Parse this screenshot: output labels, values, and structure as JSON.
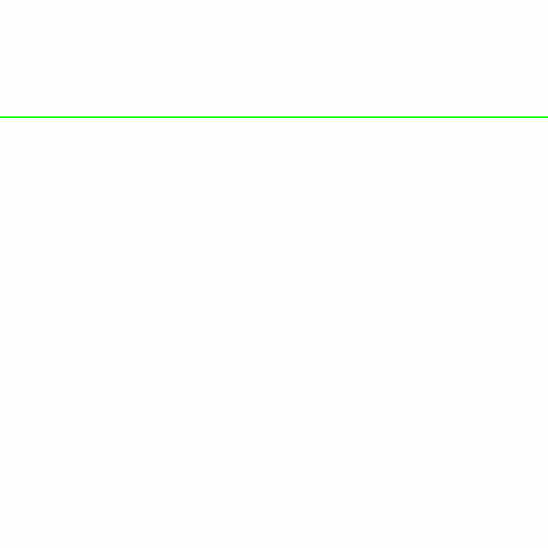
{
  "divider": {
    "color": "#00ff00"
  },
  "background": "#fefefe"
}
